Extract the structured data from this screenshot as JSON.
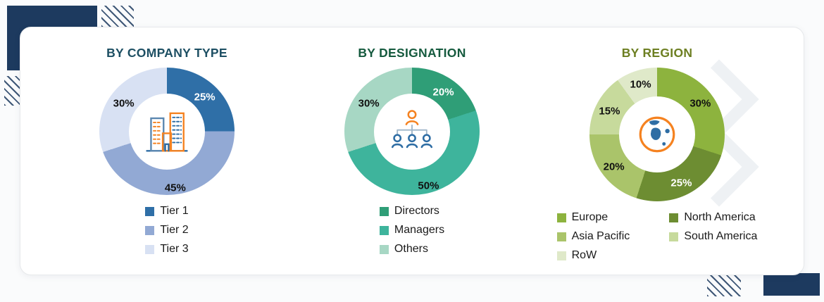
{
  "page": {
    "background": "#fafbfc",
    "card_background": "#ffffff"
  },
  "decorations": {
    "navy": "#1d3a5f",
    "chevron": "#eef1f4",
    "icons": [
      "buildings-icon",
      "org-chart-icon",
      "globe-icon"
    ]
  },
  "chart_data": [
    {
      "type": "pie",
      "donut": true,
      "title": "BY COMPANY TYPE",
      "title_color": "#1d4f63",
      "icon": "buildings-icon",
      "legend_position": "bottom",
      "segments": [
        {
          "label": "Tier 1",
          "value": 25,
          "color": "#2f6fa7",
          "label_color": "#ffffff"
        },
        {
          "label": "Tier 2",
          "value": 45,
          "color": "#92a9d4",
          "label_color": "#111111"
        },
        {
          "label": "Tier 3",
          "value": 30,
          "color": "#d8e1f3",
          "label_color": "#111111"
        }
      ]
    },
    {
      "type": "pie",
      "donut": true,
      "title": "BY DESIGNATION",
      "title_color": "#155a3e",
      "icon": "org-chart-icon",
      "legend_position": "bottom",
      "segments": [
        {
          "label": "Directors",
          "value": 20,
          "color": "#2f9e77",
          "label_color": "#ffffff"
        },
        {
          "label": "Managers",
          "value": 50,
          "color": "#3eb49c",
          "label_color": "#111111"
        },
        {
          "label": "Others",
          "value": 30,
          "color": "#a7d7c4",
          "label_color": "#111111"
        }
      ]
    },
    {
      "type": "pie",
      "donut": true,
      "title": "BY REGION",
      "title_color": "#6d7f22",
      "icon": "globe-icon",
      "legend_position": "bottom",
      "legend_columns": 2,
      "legend_order": [
        0,
        2,
        4,
        1,
        3
      ],
      "segments": [
        {
          "label": "Europe",
          "value": 30,
          "color": "#8db33e",
          "label_color": "#111111"
        },
        {
          "label": "North America",
          "value": 25,
          "color": "#6d8d32",
          "label_color": "#ffffff"
        },
        {
          "label": "Asia Pacific",
          "value": 20,
          "color": "#aac46a",
          "label_color": "#111111"
        },
        {
          "label": "South America",
          "value": 15,
          "color": "#c7da9c",
          "label_color": "#111111"
        },
        {
          "label": "RoW",
          "value": 10,
          "color": "#dfe9c9",
          "label_color": "#111111"
        }
      ]
    }
  ]
}
